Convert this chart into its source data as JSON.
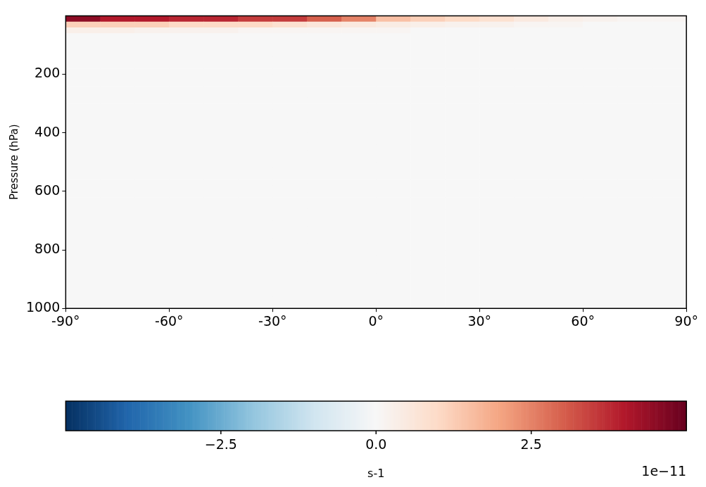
{
  "chart_data": {
    "type": "heatmap",
    "ylabel": "Pressure (hPa)",
    "clabel": "s-1",
    "annotations": [
      "1e−11"
    ],
    "x": [
      -85,
      -75,
      -65,
      -55,
      -45,
      -35,
      -25,
      -15,
      -5,
      5,
      15,
      25,
      35,
      45,
      55,
      65,
      75,
      85
    ],
    "xlim": [
      -90,
      90
    ],
    "xticks": [
      {
        "value": -90,
        "label": "-90°"
      },
      {
        "value": -60,
        "label": "-60°"
      },
      {
        "value": -30,
        "label": "-30°"
      },
      {
        "value": 0,
        "label": "0°"
      },
      {
        "value": 30,
        "label": "30°"
      },
      {
        "value": 60,
        "label": "60°"
      },
      {
        "value": 90,
        "label": "90°"
      }
    ],
    "ylim": [
      1000,
      0
    ],
    "yticks": [
      200,
      400,
      600,
      800,
      1000
    ],
    "clim": [
      -5,
      5
    ],
    "cticks": [
      {
        "value": -2.5,
        "label": "−2.5"
      },
      {
        "value": 0,
        "label": "0.0"
      },
      {
        "value": 2.5,
        "label": "2.5"
      }
    ],
    "cells": [
      [
        4.5,
        4,
        4,
        3.8,
        3.8,
        3.5,
        3.5,
        3,
        2.5,
        1.5,
        1.2,
        1,
        0.8,
        0.5,
        0.3,
        0.2,
        0.1,
        0.1
      ],
      [
        1.2,
        1.2,
        1.2,
        1,
        1,
        1,
        0.8,
        0.6,
        0.5,
        0.4,
        0.3,
        0.2,
        0.2,
        0.1,
        0.1,
        0,
        0,
        0
      ],
      [
        0.3,
        0.3,
        0.2,
        0.2,
        0.2,
        0.1,
        0.1,
        0.1,
        0.1,
        0.1,
        0,
        0,
        0,
        0,
        0,
        0,
        0,
        0
      ],
      [
        0,
        0,
        0,
        0,
        0,
        0,
        0,
        0,
        0,
        0,
        0,
        0,
        0,
        0,
        0,
        0,
        0,
        0
      ],
      [
        0,
        0,
        0,
        0,
        0,
        0,
        0,
        0,
        0,
        0,
        0,
        0,
        0,
        0,
        0,
        0,
        0,
        0
      ],
      [
        0,
        0,
        0,
        0,
        0,
        0,
        0,
        0,
        0,
        0,
        0,
        0,
        0,
        0,
        0,
        0,
        0,
        0
      ],
      [
        0,
        0,
        0,
        0,
        0,
        0,
        0,
        0,
        0,
        0,
        0,
        0,
        0,
        0,
        0,
        0,
        0,
        0
      ],
      [
        0,
        0,
        0,
        0,
        0,
        0,
        0,
        0,
        0,
        0,
        0,
        0,
        0,
        0,
        0,
        0,
        0,
        0
      ],
      [
        0,
        0,
        0,
        0,
        0,
        0,
        0,
        0,
        0,
        0,
        0,
        0,
        0,
        0,
        0,
        0,
        0,
        0
      ],
      [
        0,
        0,
        0,
        0,
        0,
        0,
        0,
        0,
        0,
        0,
        0,
        0,
        0,
        0,
        0,
        0,
        0,
        0
      ],
      [
        0,
        0,
        0,
        0,
        0,
        0,
        0,
        0,
        0,
        0,
        0,
        0,
        0,
        0,
        0,
        0,
        0,
        0
      ],
      [
        0,
        0,
        0,
        0,
        0,
        0,
        0,
        0,
        0,
        0,
        0,
        0,
        0,
        0,
        0,
        0,
        0,
        0
      ],
      [
        0,
        0,
        0,
        0,
        0,
        0,
        0,
        0,
        0,
        0,
        0,
        0,
        0,
        0,
        0,
        0,
        0,
        0
      ],
      [
        0,
        0,
        0,
        0,
        0,
        0,
        0,
        0,
        0,
        0,
        0,
        0,
        0,
        0,
        0,
        0,
        0,
        0
      ],
      [
        0,
        0,
        0,
        0,
        0,
        0,
        0,
        0,
        0,
        0,
        0,
        0,
        0,
        0,
        0,
        0,
        0,
        0
      ],
      [
        0,
        0,
        0,
        0,
        0,
        0,
        0,
        0,
        0,
        0,
        0,
        0,
        0,
        0,
        0,
        0,
        0,
        0
      ],
      [
        0,
        0,
        0,
        0,
        0,
        0,
        0,
        0,
        0,
        0,
        0,
        0,
        0,
        0,
        0,
        0,
        0,
        0
      ],
      [
        0,
        0,
        0,
        0,
        0,
        0,
        0,
        0,
        0,
        0,
        0,
        0,
        0,
        0,
        0,
        0,
        0,
        0
      ],
      [
        0,
        0,
        0,
        0,
        0,
        0,
        0,
        0,
        0,
        0,
        0,
        0,
        0,
        0,
        0,
        0,
        0,
        0
      ],
      [
        0,
        0,
        0,
        0,
        0,
        0,
        0,
        0,
        0,
        0,
        0,
        0,
        0,
        0,
        0,
        0,
        0,
        0
      ],
      [
        0,
        0,
        0,
        0,
        0,
        0,
        0,
        0,
        0,
        0,
        0,
        0,
        0,
        0,
        0,
        0,
        0,
        0
      ],
      [
        0,
        0,
        0,
        0,
        0,
        0,
        0,
        0,
        0,
        0,
        0,
        0,
        0,
        0,
        0,
        0,
        0,
        0
      ],
      [
        0,
        0,
        0,
        0,
        0,
        0,
        0,
        0,
        0,
        0,
        0,
        0,
        0,
        0,
        0,
        0,
        0,
        0
      ],
      [
        0,
        0,
        0,
        0,
        0,
        0,
        0,
        0,
        0,
        0,
        0,
        0,
        0,
        0,
        0,
        0,
        0,
        0
      ],
      [
        0,
        0,
        0,
        0,
        0,
        0,
        0,
        0,
        0,
        0,
        0,
        0,
        0,
        0,
        0,
        0,
        0,
        0
      ],
      [
        0,
        0,
        0,
        0,
        0,
        0,
        0,
        0,
        0,
        0,
        0,
        0,
        0,
        0,
        0,
        0,
        0,
        0
      ],
      [
        0,
        0,
        0,
        0,
        0,
        0,
        0,
        0,
        0,
        0,
        0,
        0,
        0,
        0,
        0,
        0,
        0,
        0
      ],
      [
        0,
        0,
        0,
        0,
        0,
        0,
        0,
        0,
        0,
        0,
        0,
        0,
        0,
        0,
        0,
        0,
        0,
        0
      ],
      [
        0,
        0,
        0,
        0,
        0,
        0,
        0,
        0,
        0,
        0,
        0,
        0,
        0,
        0,
        0,
        0,
        0,
        0
      ],
      [
        0,
        0,
        0,
        0,
        0,
        0,
        0,
        0,
        0,
        0,
        0,
        0,
        0,
        0,
        0,
        0,
        0,
        0
      ],
      [
        0,
        0,
        0,
        0,
        0,
        0,
        0,
        0,
        0,
        0,
        0,
        0,
        0,
        0,
        0,
        0,
        0,
        0
      ],
      [
        0,
        0,
        0,
        0,
        0,
        0,
        0,
        0,
        0,
        0,
        0,
        0,
        0,
        0,
        0,
        0,
        0,
        0
      ],
      [
        0,
        0,
        0,
        0,
        0,
        0,
        0,
        0,
        0,
        0,
        0,
        0,
        0,
        0,
        0,
        0,
        0,
        0
      ],
      [
        0,
        0,
        0,
        0,
        0,
        0,
        0,
        0,
        0,
        0,
        0,
        0,
        0,
        0,
        0,
        0,
        0,
        0
      ],
      [
        0,
        0,
        0,
        0,
        0,
        0,
        0,
        0,
        0,
        0,
        0,
        0,
        0,
        0,
        0,
        0,
        0,
        0
      ],
      [
        0,
        0,
        0,
        0,
        0,
        0,
        0,
        0,
        0,
        0,
        0,
        0,
        0,
        0,
        0,
        0,
        0,
        0
      ],
      [
        0,
        0,
        0,
        0,
        0,
        0,
        0,
        0,
        0,
        0,
        0,
        0,
        0,
        0,
        0,
        0,
        0,
        0
      ],
      [
        0,
        0,
        0,
        0,
        0,
        0,
        0,
        0,
        0,
        0,
        0,
        0,
        0,
        0,
        0,
        0,
        0,
        0
      ],
      [
        0,
        0,
        0,
        0,
        0,
        0,
        0,
        0,
        0,
        0,
        0,
        0,
        0,
        0,
        0,
        0,
        0,
        0
      ],
      [
        0,
        0,
        0,
        0,
        0,
        0,
        0,
        0,
        0,
        0,
        0,
        0,
        0,
        0,
        0,
        0,
        0,
        0
      ],
      [
        0,
        0,
        0,
        0,
        0,
        0,
        0,
        0,
        0,
        0,
        0,
        0,
        0,
        0,
        0,
        0,
        0,
        0
      ],
      [
        0,
        0,
        0,
        0,
        0,
        0,
        0,
        0,
        0,
        0,
        0,
        0,
        0,
        0,
        0,
        0,
        0,
        0
      ],
      [
        0,
        0,
        0,
        0,
        0,
        0,
        0,
        0,
        0,
        0,
        0,
        0,
        0,
        0,
        0,
        0,
        0,
        0
      ],
      [
        0,
        0,
        0,
        0,
        0,
        0,
        0,
        0,
        0,
        0,
        0,
        0,
        0,
        0,
        0,
        0,
        0,
        0
      ],
      [
        0,
        0,
        0,
        0,
        0,
        0,
        0,
        0,
        0,
        0,
        0,
        0,
        0,
        0,
        0,
        0,
        0,
        0
      ],
      [
        0,
        0,
        0,
        0,
        0,
        0,
        0,
        0,
        0,
        0,
        0,
        0,
        0,
        0,
        0,
        0,
        0,
        0
      ],
      [
        0,
        0,
        0,
        0,
        0,
        0,
        0,
        0,
        0,
        0,
        0,
        0,
        0,
        0,
        0,
        0,
        0,
        0
      ],
      [
        0,
        0,
        0,
        0,
        0,
        0,
        0,
        0,
        0,
        0,
        0,
        0,
        0,
        0,
        0,
        0,
        0,
        0
      ],
      [
        0,
        0,
        0,
        0,
        0,
        0,
        0,
        0,
        0,
        0,
        0,
        0,
        0,
        0,
        0,
        0,
        0,
        0
      ],
      [
        0,
        0,
        0,
        0,
        0,
        0,
        0,
        0,
        0,
        0,
        0,
        0,
        0,
        0,
        0,
        0,
        0,
        0
      ]
    ]
  }
}
